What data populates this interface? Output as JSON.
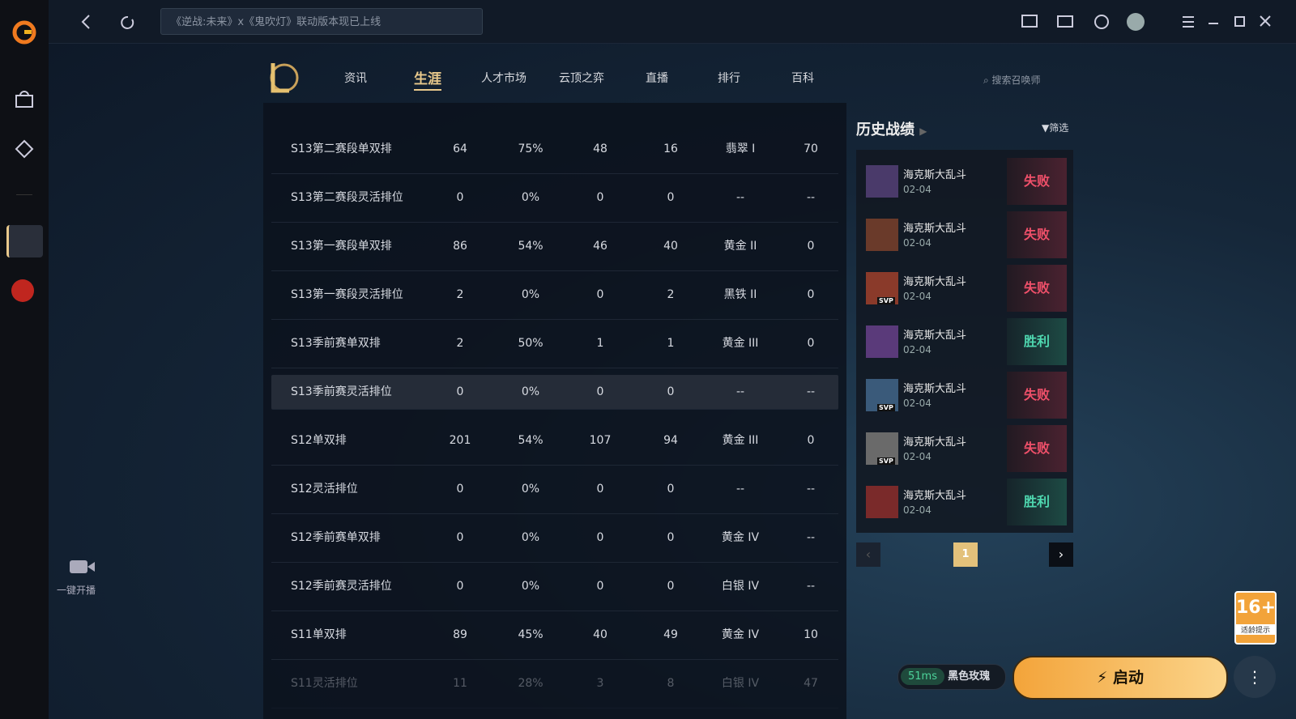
{
  "topbar": {
    "search_placeholder": "《逆战:未来》x《鬼吹灯》联动版本现已上线"
  },
  "nav": {
    "items": [
      "资讯",
      "生涯",
      "人才市场",
      "云顶之弈",
      "直播",
      "排行",
      "百科"
    ],
    "active": 1,
    "search_summoner": "搜索召唤师"
  },
  "sidebar": {
    "live": "一键开播"
  },
  "table": {
    "rows": [
      [
        "S13第二赛段单双排",
        "64",
        "75%",
        "48",
        "16",
        "翡翠 I",
        "70"
      ],
      [
        "S13第二赛段灵活排位",
        "0",
        "0%",
        "0",
        "0",
        "--",
        "--"
      ],
      [
        "S13第一赛段单双排",
        "86",
        "54%",
        "46",
        "40",
        "黄金 II",
        "0"
      ],
      [
        "S13第一赛段灵活排位",
        "2",
        "0%",
        "0",
        "2",
        "黑铁 II",
        "0"
      ],
      [
        "S13季前赛单双排",
        "2",
        "50%",
        "1",
        "1",
        "黄金 III",
        "0"
      ],
      [
        "S13季前赛灵活排位",
        "0",
        "0%",
        "0",
        "0",
        "--",
        "--"
      ],
      [
        "S12单双排",
        "201",
        "54%",
        "107",
        "94",
        "黄金 III",
        "0"
      ],
      [
        "S12灵活排位",
        "0",
        "0%",
        "0",
        "0",
        "--",
        "--"
      ],
      [
        "S12季前赛单双排",
        "0",
        "0%",
        "0",
        "0",
        "黄金 IV",
        "--"
      ],
      [
        "S12季前赛灵活排位",
        "0",
        "0%",
        "0",
        "0",
        "白银 IV",
        "--"
      ],
      [
        "S11单双排",
        "89",
        "45%",
        "40",
        "49",
        "黄金 IV",
        "10"
      ],
      [
        "S11灵活排位",
        "11",
        "28%",
        "3",
        "8",
        "白银 IV",
        "47"
      ]
    ],
    "highlighted": 5
  },
  "history": {
    "title": "历史战绩",
    "filter": "筛选",
    "matches": [
      {
        "mode": "海克斯大乱斗",
        "date": "02-04",
        "result": "失败"
      },
      {
        "mode": "海克斯大乱斗",
        "date": "02-04",
        "result": "失败"
      },
      {
        "mode": "海克斯大乱斗",
        "date": "02-04",
        "result": "失败",
        "badge": "SVP"
      },
      {
        "mode": "海克斯大乱斗",
        "date": "02-04",
        "result": "胜利"
      },
      {
        "mode": "海克斯大乱斗",
        "date": "02-04",
        "result": "失败",
        "badge": "SVP"
      },
      {
        "mode": "海克斯大乱斗",
        "date": "02-04",
        "result": "失败",
        "badge": "SVP"
      },
      {
        "mode": "海克斯大乱斗",
        "date": "02-04",
        "result": "胜利"
      }
    ],
    "page": "1"
  },
  "footer": {
    "ping": "51ms",
    "server": "黑色玫瑰",
    "launch": "启动",
    "age": "16+",
    "age_note": "适龄提示"
  }
}
